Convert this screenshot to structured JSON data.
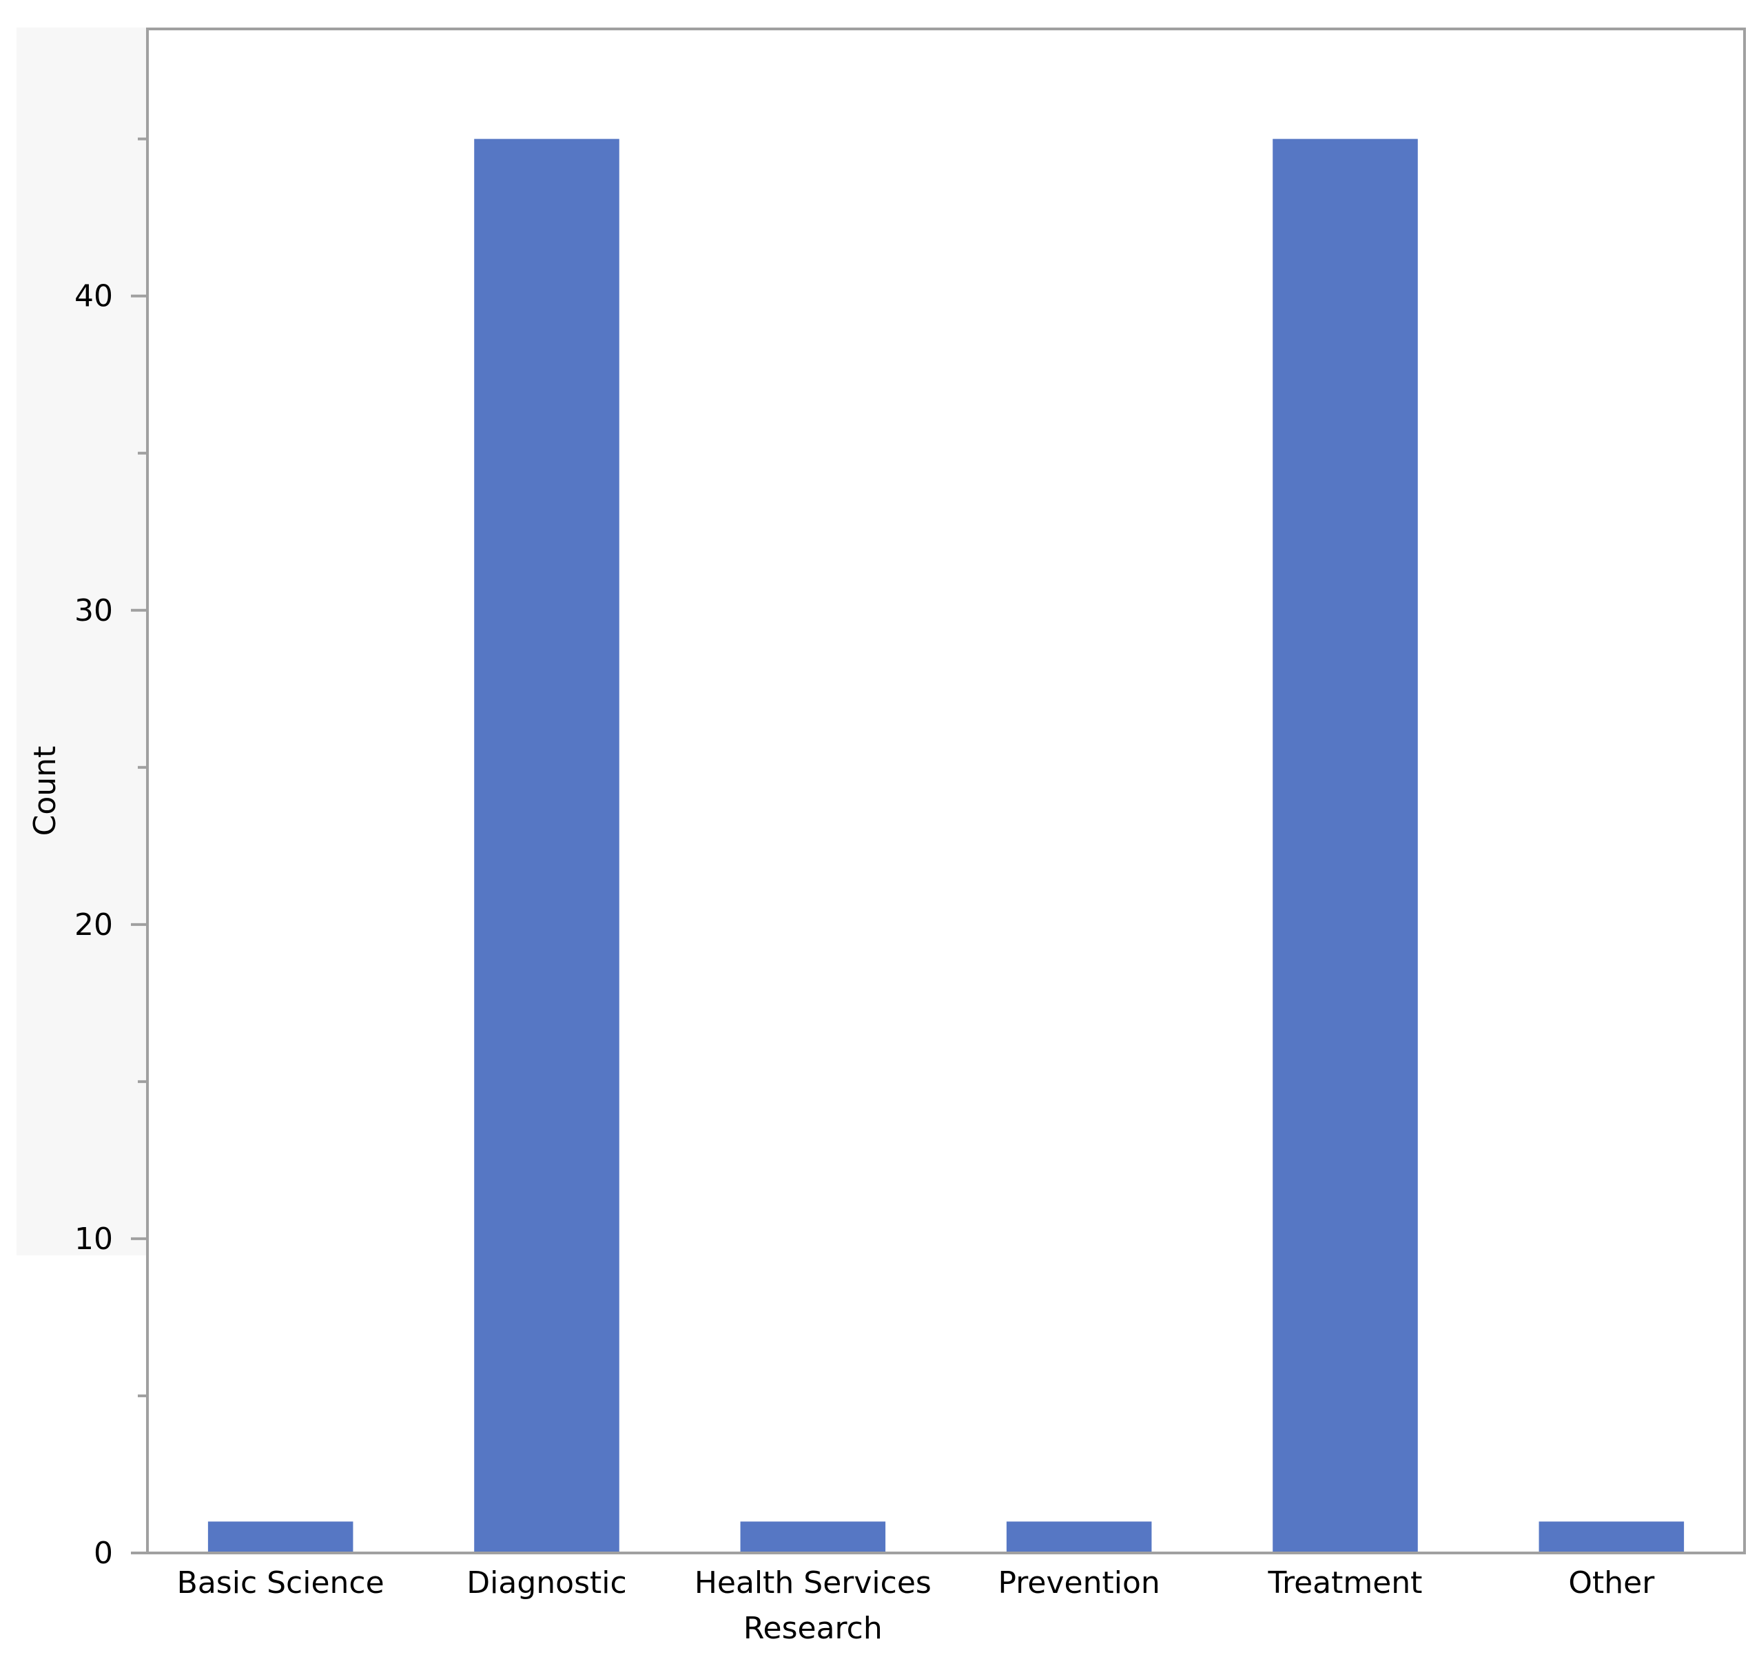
{
  "chart_data": {
    "type": "bar",
    "categories": [
      "Basic Science",
      "Diagnostic",
      "Health Services\nResearch",
      "Prevention",
      "Treatment",
      "Other"
    ],
    "values": [
      1,
      45,
      1,
      1,
      45,
      1
    ],
    "title": "",
    "xlabel": "",
    "ylabel": "Count",
    "ylim": [
      0,
      48.5
    ],
    "yticks": [
      0,
      10,
      20,
      30,
      40
    ],
    "y_minor_ticks": [
      5,
      15,
      25,
      35,
      45
    ],
    "grid": false,
    "bar_color": "#5677C4",
    "frame_color": "#A0A0A0",
    "background_panel_color": "#F7F7F7"
  }
}
